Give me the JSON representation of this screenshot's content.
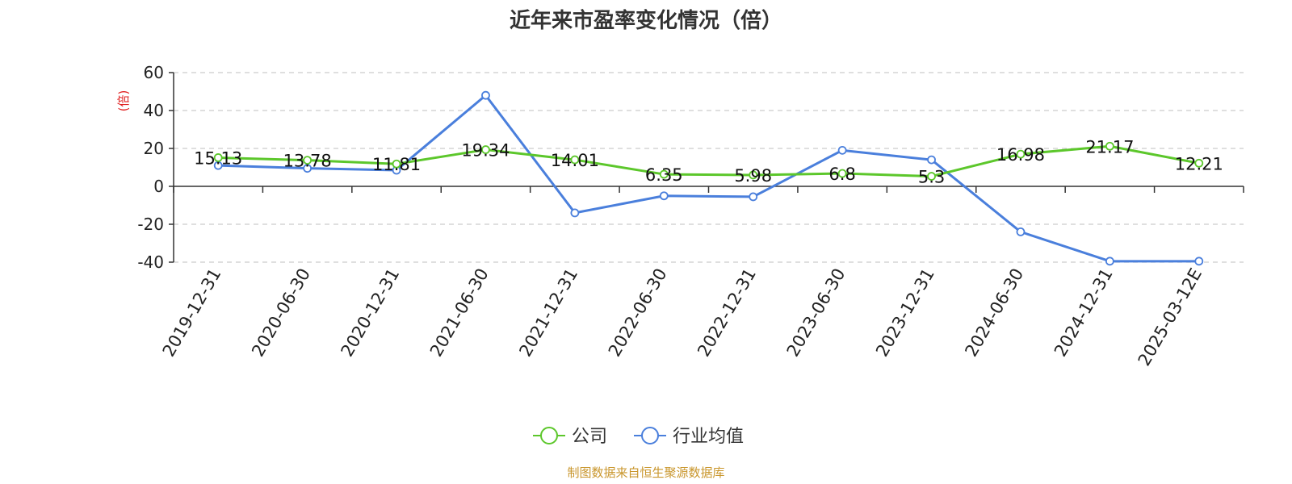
{
  "chart_data": {
    "type": "line",
    "title": "近年来市盈率变化情况（倍）",
    "ylabel": "(倍)",
    "xlabel": "",
    "ylim": [
      -40,
      60
    ],
    "yticks": [
      60,
      40,
      20,
      0,
      -20,
      -40
    ],
    "grid": "horizontal-dashed",
    "legend_position": "bottom-center",
    "categories": [
      "2019-12-31",
      "2020-06-30",
      "2020-12-31",
      "2021-06-30",
      "2021-12-31",
      "2022-06-30",
      "2022-12-31",
      "2023-06-30",
      "2023-12-31",
      "2024-06-30",
      "2024-12-31",
      "2025-03-12E"
    ],
    "series": [
      {
        "name": "公司",
        "color": "#5cc72b",
        "values": [
          15.13,
          13.78,
          11.81,
          19.34,
          14.01,
          6.35,
          5.98,
          6.8,
          5.3,
          16.98,
          21.17,
          12.21
        ],
        "labels": [
          "15.13",
          "13.78",
          "11.81",
          "19.34",
          "14.01",
          "6.35",
          "5.98",
          "6.8",
          "5.3",
          "16.98",
          "21.17",
          "12.21"
        ]
      },
      {
        "name": "行业均值",
        "color": "#4a7fdc",
        "values": [
          11,
          9.5,
          8.5,
          48,
          -14,
          -5,
          -5.5,
          19,
          14,
          -24,
          -39.5,
          -39.5
        ]
      }
    ]
  },
  "footer": {
    "source": "制图数据来自恒生聚源数据库"
  }
}
